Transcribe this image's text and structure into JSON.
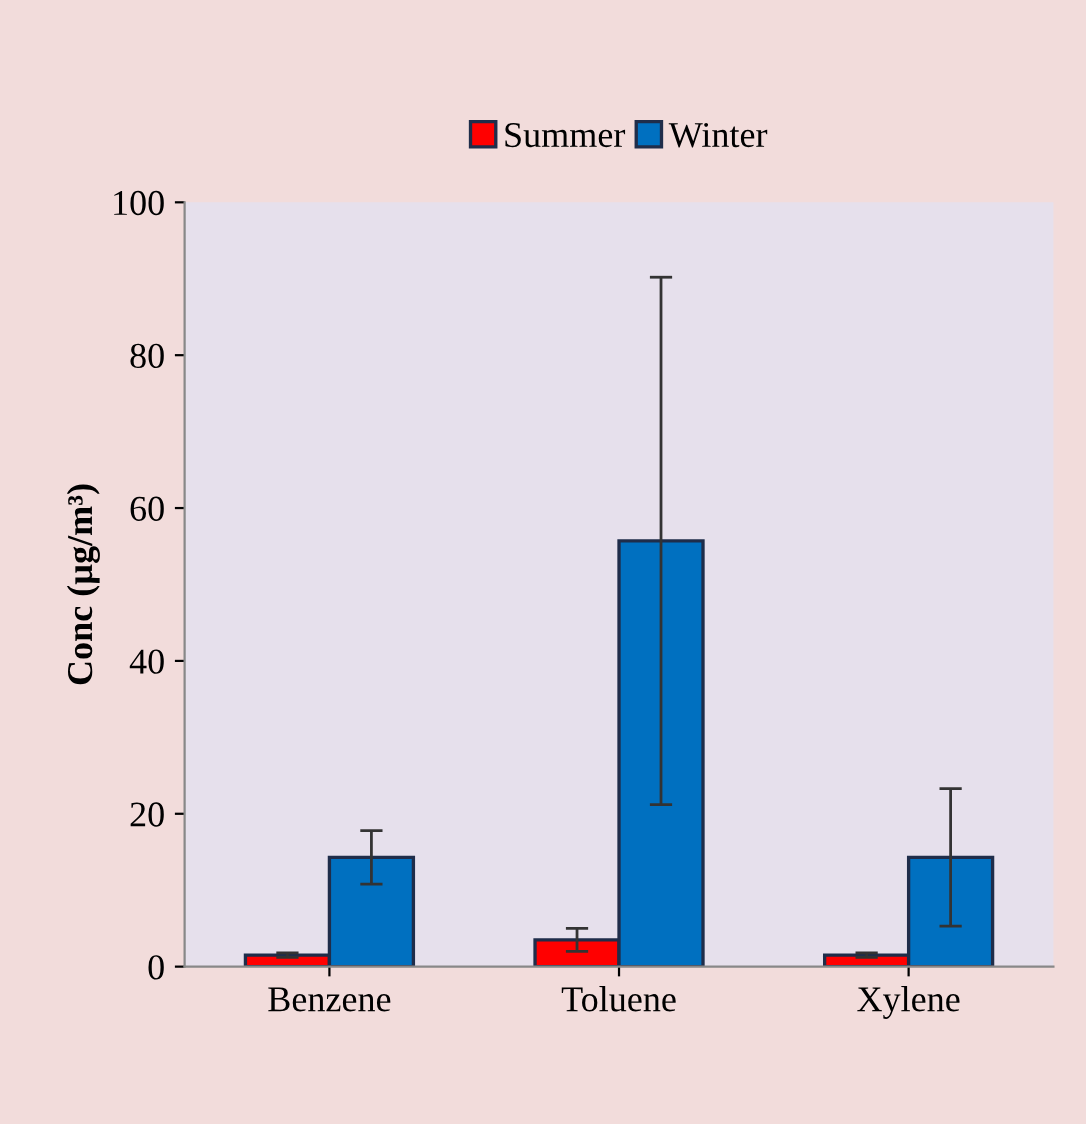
{
  "chart_data": {
    "type": "bar",
    "ylabel": "Conc (µg/m³)",
    "categories": [
      "Benzene",
      "Toluene",
      "Xylene"
    ],
    "series": [
      {
        "name": "Summer",
        "color": "#ff0000",
        "values": [
          1.5,
          3.5,
          1.5
        ],
        "errors": [
          0.3,
          1.5,
          0.3
        ]
      },
      {
        "name": "Winter",
        "color": "#0070c0",
        "values": [
          14.3,
          55.7,
          14.3
        ],
        "errors": [
          3.5,
          34.5,
          9
        ]
      }
    ],
    "ylim": [
      0,
      100
    ],
    "yticks": [
      0,
      20,
      40,
      60,
      80,
      100
    ],
    "grid": false,
    "legend": "top"
  }
}
